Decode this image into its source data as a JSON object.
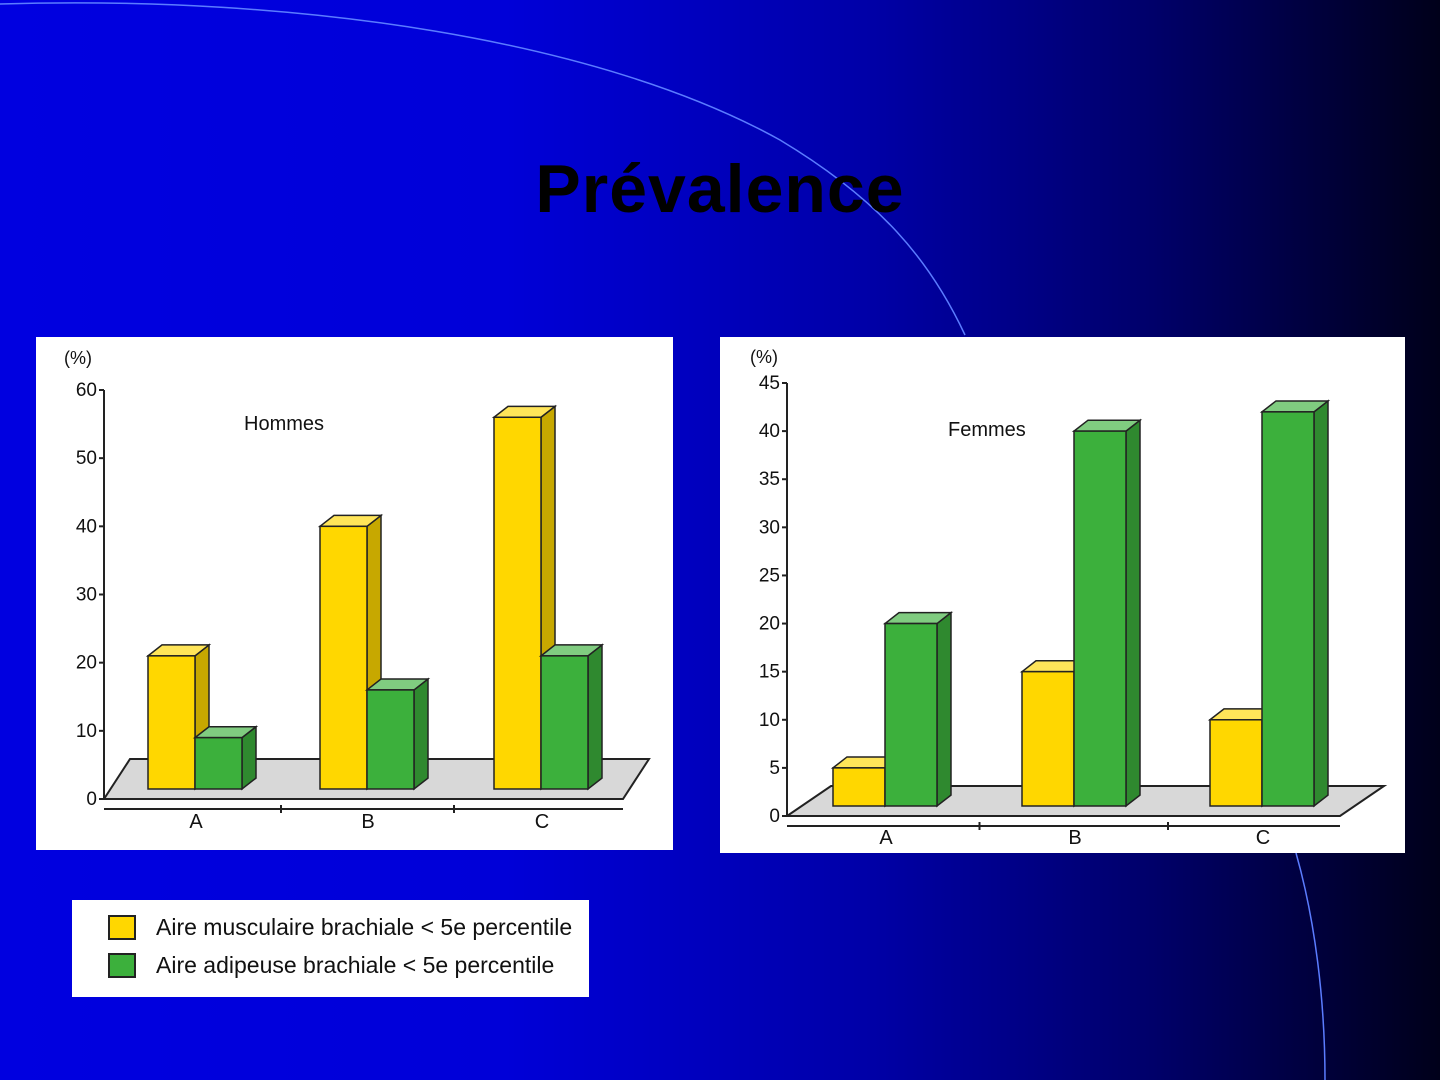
{
  "title": "Prévalence",
  "colors": {
    "yellow": "#ffd700",
    "green": "#3cb03c"
  },
  "legend": [
    {
      "label": "Aire musculaire brachiale < 5e percentile",
      "color": "#ffd700"
    },
    {
      "label": "Aire adipeuse brachiale < 5e percentile",
      "color": "#3cb03c"
    }
  ],
  "chart_data": [
    {
      "type": "bar",
      "title": "Hommes",
      "ylabel": "(%)",
      "ylim": [
        0,
        60
      ],
      "yticks": [
        0,
        10,
        20,
        30,
        40,
        50,
        60
      ],
      "categories": [
        "A",
        "B",
        "C"
      ],
      "series": [
        {
          "name": "Aire musculaire brachiale < 5e percentile",
          "values": [
            21,
            40,
            56
          ]
        },
        {
          "name": "Aire adipeuse brachiale < 5e percentile",
          "values": [
            9,
            16,
            21
          ]
        }
      ]
    },
    {
      "type": "bar",
      "title": "Femmes",
      "ylabel": "(%)",
      "ylim": [
        0,
        45
      ],
      "yticks": [
        0,
        5,
        10,
        15,
        20,
        25,
        30,
        35,
        40,
        45
      ],
      "categories": [
        "A",
        "B",
        "C"
      ],
      "series": [
        {
          "name": "Aire musculaire brachiale < 5e percentile",
          "values": [
            5,
            15,
            10
          ]
        },
        {
          "name": "Aire adipeuse brachiale < 5e percentile",
          "values": [
            20,
            40,
            42
          ]
        }
      ]
    }
  ]
}
